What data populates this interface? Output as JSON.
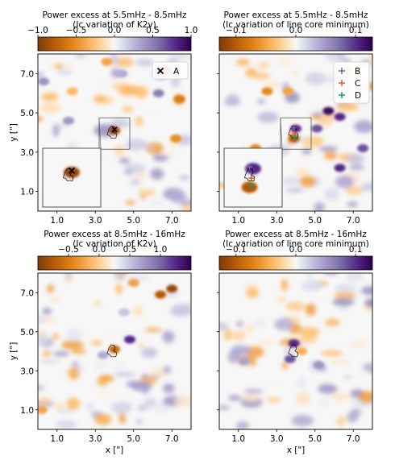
{
  "figure": {
    "xlabel": "x [\"]",
    "ylabel": "y [\"]",
    "x_ticks": [
      "1.0",
      "3.0",
      "5.0",
      "7.0"
    ],
    "y_ticks": [
      "1.0",
      "3.0",
      "5.0",
      "7.0"
    ]
  },
  "panels": [
    {
      "title1": "Power excess at 5.5mHz - 8.5mHz",
      "title2": "(Ic variation of K2v)",
      "cbar_ticks": [
        "−1.0",
        "−0.5",
        "0.0",
        "0.5",
        "1.0"
      ],
      "legend": [
        {
          "marker": "x",
          "label": "A",
          "color": "#000000"
        }
      ],
      "inset": true
    },
    {
      "title1": "Power excess at 5.5mHz - 8.5mHz",
      "title2": "(Ic variation of line core minimum)",
      "cbar_ticks": [
        "−0.1",
        "0.0",
        "0.1"
      ],
      "legend": [
        {
          "marker": "+",
          "label": "B",
          "color": "#7b63a8"
        },
        {
          "marker": "+",
          "label": "C",
          "color": "#d9622b"
        },
        {
          "marker": "+",
          "label": "D",
          "color": "#1b9e77"
        }
      ],
      "inset": true
    },
    {
      "title1": "Power excess at 8.5mHz - 16mHz",
      "title2": "(Ic variation of K2v)",
      "cbar_ticks": [
        "−0.5",
        "0.0",
        "0.5",
        "1.0"
      ],
      "legend": [],
      "inset": false
    },
    {
      "title1": "Power excess at 8.5mHz - 16mHz",
      "title2": "(Ic variation of line core minimum)",
      "cbar_ticks": [
        "−0.1",
        "0.0",
        "0.1"
      ],
      "legend": [],
      "inset": false
    }
  ],
  "chart_data": [
    {
      "type": "heatmap",
      "title": "Power excess at 5.5mHz - 8.5mHz (Ic variation of K2v)",
      "xlabel": "",
      "ylabel": "y [\"]",
      "xlim": [
        0,
        8
      ],
      "ylim": [
        0,
        8
      ],
      "clim": [
        -1.0,
        1.0
      ],
      "colormap": "PuOr (orange negative, purple positive)",
      "markers": [
        {
          "label": "A",
          "x": 4.0,
          "y": 4.15,
          "symbol": "x"
        }
      ],
      "features": [
        {
          "x": 4.0,
          "y": 4.1,
          "value": -0.9
        },
        {
          "x": 6.7,
          "y": 7.2,
          "value": -0.7
        },
        {
          "x": 7.4,
          "y": 5.7,
          "value": -0.6
        },
        {
          "x": 7.2,
          "y": 3.7,
          "value": -0.5
        },
        {
          "x": 6.3,
          "y": 6.0,
          "value": 0.5
        },
        {
          "x": 1.6,
          "y": 4.6,
          "value": 0.4
        },
        {
          "x": 0.3,
          "y": 6.6,
          "value": 0.4
        },
        {
          "x": 4.4,
          "y": 7.0,
          "value": 0.3
        },
        {
          "x": 1.8,
          "y": 6.1,
          "value": -0.3
        },
        {
          "x": 3.6,
          "y": 7.6,
          "value": -0.4
        }
      ]
    },
    {
      "type": "heatmap",
      "title": "Power excess at 5.5mHz - 8.5mHz (Ic variation of line core minimum)",
      "xlabel": "",
      "ylabel": "",
      "xlim": [
        0,
        8
      ],
      "ylim": [
        0,
        8
      ],
      "clim": [
        -0.15,
        0.15
      ],
      "colormap": "PuOr (orange negative, purple positive)",
      "markers": [
        {
          "label": "B",
          "x": 3.9,
          "y": 4.25,
          "symbol": "+"
        },
        {
          "label": "C",
          "x": 3.95,
          "y": 3.95,
          "symbol": "+"
        },
        {
          "label": "D",
          "x": 3.95,
          "y": 3.75,
          "symbol": "+"
        }
      ],
      "features": [
        {
          "x": 5.7,
          "y": 5.1,
          "value": 0.14
        },
        {
          "x": 6.3,
          "y": 4.8,
          "value": 0.12
        },
        {
          "x": 4.0,
          "y": 4.2,
          "value": 0.12
        },
        {
          "x": 3.9,
          "y": 3.7,
          "value": -0.12
        },
        {
          "x": 5.1,
          "y": 4.2,
          "value": 0.1
        },
        {
          "x": 6.3,
          "y": 2.2,
          "value": 0.12
        },
        {
          "x": 7.5,
          "y": 3.2,
          "value": 0.1
        },
        {
          "x": 2.5,
          "y": 6.1,
          "value": -0.08
        },
        {
          "x": 3.6,
          "y": 6.1,
          "value": -0.06
        },
        {
          "x": 1.9,
          "y": 3.2,
          "value": -0.08
        }
      ]
    },
    {
      "type": "heatmap",
      "title": "Power excess at 8.5mHz - 16mHz (Ic variation of K2v)",
      "xlabel": "x [\"]",
      "ylabel": "y [\"]",
      "xlim": [
        0,
        8
      ],
      "ylim": [
        0,
        8
      ],
      "clim": [
        -1.0,
        1.0
      ],
      "colormap": "PuOr (orange negative, purple positive)",
      "features": [
        {
          "x": 7.0,
          "y": 7.2,
          "value": -0.9
        },
        {
          "x": 6.4,
          "y": 6.9,
          "value": -0.8
        },
        {
          "x": 4.0,
          "y": 4.1,
          "value": -0.7
        },
        {
          "x": 4.8,
          "y": 4.6,
          "value": 0.8
        },
        {
          "x": 3.4,
          "y": 3.8,
          "value": 0.3
        },
        {
          "x": 5.0,
          "y": 7.5,
          "value": -0.4
        },
        {
          "x": 0.2,
          "y": 1.0,
          "value": -0.4
        },
        {
          "x": 4.5,
          "y": 6.0,
          "value": 0.2
        }
      ]
    },
    {
      "type": "heatmap",
      "title": "Power excess at 8.5mHz - 16mHz (Ic variation of line core minimum)",
      "xlabel": "x [\"]",
      "ylabel": "",
      "xlim": [
        0,
        8
      ],
      "ylim": [
        0,
        8
      ],
      "clim": [
        -0.15,
        0.15
      ],
      "colormap": "PuOr (orange negative, purple positive)",
      "features": [
        {
          "x": 3.9,
          "y": 4.4,
          "value": 0.12
        },
        {
          "x": 3.7,
          "y": 3.6,
          "value": 0.1
        },
        {
          "x": 5.2,
          "y": 3.3,
          "value": 0.06
        },
        {
          "x": 1.3,
          "y": 3.5,
          "value": 0.05
        },
        {
          "x": 4.3,
          "y": 4.0,
          "value": -0.05
        }
      ]
    }
  ]
}
